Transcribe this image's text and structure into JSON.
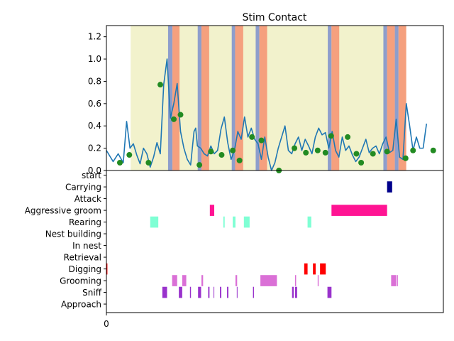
{
  "chart_data": [
    {
      "type": "line",
      "title": "Stim Contact",
      "xlabel": "",
      "ylabel": "",
      "xlim": [
        0,
        1000
      ],
      "ylim": [
        0,
        1.3
      ],
      "yticks": [
        "0.0",
        "0.2",
        "0.4",
        "0.6",
        "0.8",
        "1.0",
        "1.2"
      ],
      "grid": false,
      "line_color": "#1f77b4",
      "marker_color": "#228B22",
      "series": [
        {
          "x": [
            0,
            20,
            35,
            50,
            60,
            70,
            80,
            90,
            100,
            110,
            120,
            130,
            140,
            150,
            160,
            170,
            180,
            190,
            200,
            210,
            220,
            230,
            240,
            250,
            260,
            265,
            270,
            280,
            290,
            300,
            310,
            320,
            330,
            340,
            350,
            360,
            370,
            380,
            390,
            400,
            410,
            420,
            430,
            440,
            450,
            460,
            470,
            480,
            490,
            500,
            510,
            520,
            530,
            540,
            550,
            560,
            570,
            580,
            590,
            600,
            610,
            620,
            630,
            640,
            650,
            660,
            670,
            680,
            690,
            700,
            710,
            720,
            730,
            740,
            750,
            760,
            770,
            780,
            790,
            800,
            810,
            820,
            830,
            840,
            850,
            860,
            870,
            880,
            890,
            900,
            910,
            920,
            930,
            940,
            950
          ],
          "y": [
            0.18,
            0.08,
            0.15,
            0.07,
            0.44,
            0.2,
            0.24,
            0.14,
            0.06,
            0.2,
            0.15,
            0.03,
            0.12,
            0.25,
            0.15,
            0.77,
            1.0,
            0.47,
            0.6,
            0.78,
            0.35,
            0.2,
            0.1,
            0.05,
            0.35,
            0.38,
            0.22,
            0.2,
            0.15,
            0.13,
            0.22,
            0.15,
            0.18,
            0.37,
            0.48,
            0.25,
            0.1,
            0.18,
            0.35,
            0.28,
            0.48,
            0.3,
            0.38,
            0.28,
            0.24,
            0.1,
            0.3,
            0.12,
            0.0,
            0.07,
            0.2,
            0.3,
            0.4,
            0.18,
            0.15,
            0.24,
            0.3,
            0.18,
            0.28,
            0.22,
            0.15,
            0.3,
            0.38,
            0.32,
            0.34,
            0.2,
            0.35,
            0.18,
            0.12,
            0.3,
            0.18,
            0.22,
            0.14,
            0.08,
            0.12,
            0.2,
            0.28,
            0.16,
            0.2,
            0.22,
            0.15,
            0.24,
            0.3,
            0.16,
            0.18,
            0.46,
            0.12,
            0.1,
            0.6,
            0.4,
            0.18,
            0.3,
            0.2,
            0.2,
            0.42
          ]
        }
      ],
      "markers": {
        "x": [
          40,
          68,
          125,
          160,
          200,
          220,
          276,
          310,
          342,
          375,
          395,
          432,
          460,
          512,
          558,
          592,
          627,
          650,
          667,
          716,
          742,
          756,
          791,
          833,
          888,
          910,
          970
        ],
        "y": [
          0.07,
          0.14,
          0.07,
          0.77,
          0.46,
          0.5,
          0.05,
          0.17,
          0.14,
          0.18,
          0.09,
          0.3,
          0.27,
          0.0,
          0.2,
          0.16,
          0.18,
          0.16,
          0.31,
          0.3,
          0.15,
          0.07,
          0.15,
          0.17,
          0.11,
          0.18,
          0.18
        ]
      },
      "bands": [
        {
          "type": "yellow",
          "color": "#f2f2cc",
          "x0": 72,
          "x1": 1000
        },
        {
          "type": "blue",
          "color": "#8e9ecc",
          "x0": 183,
          "x1": 196
        },
        {
          "type": "orange",
          "color": "#f5a07e",
          "x0": 196,
          "x1": 217
        },
        {
          "type": "blue",
          "color": "#8e9ecc",
          "x0": 271,
          "x1": 282
        },
        {
          "type": "orange",
          "color": "#f5a07e",
          "x0": 282,
          "x1": 305
        },
        {
          "type": "blue",
          "color": "#8e9ecc",
          "x0": 372,
          "x1": 382
        },
        {
          "type": "orange",
          "color": "#f5a07e",
          "x0": 382,
          "x1": 406
        },
        {
          "type": "blue",
          "color": "#8e9ecc",
          "x0": 443,
          "x1": 454
        },
        {
          "type": "orange",
          "color": "#f5a07e",
          "x0": 454,
          "x1": 477
        },
        {
          "type": "blue",
          "color": "#8e9ecc",
          "x0": 657,
          "x1": 668
        },
        {
          "type": "orange",
          "color": "#f5a07e",
          "x0": 668,
          "x1": 691
        },
        {
          "type": "blue",
          "color": "#8e9ecc",
          "x0": 822,
          "x1": 833
        },
        {
          "type": "orange",
          "color": "#f5a07e",
          "x0": 833,
          "x1": 856
        },
        {
          "type": "blue",
          "color": "#8e9ecc",
          "x0": 856,
          "x1": 867
        },
        {
          "type": "orange",
          "color": "#f5a07e",
          "x0": 867,
          "x1": 890
        },
        {
          "type": "white",
          "color": "#ffffff",
          "x0": 890,
          "x1": 1000
        }
      ]
    },
    {
      "type": "ethogram",
      "xlim": [
        0,
        1000
      ],
      "xticks": [
        "0"
      ],
      "categories": [
        "start",
        "Carrying",
        "Attack",
        "Aggressive groom",
        "Rearing",
        "Nest building",
        "In nest",
        "Retrieval",
        "Digging",
        "Grooming",
        "Sniff",
        "Approach"
      ],
      "events": [
        {
          "category": "Carrying",
          "color": "#00008b",
          "intervals": [
            [
              833,
              848
            ]
          ]
        },
        {
          "category": "Aggressive groom",
          "color": "#ff1493",
          "intervals": [
            [
              307,
              320
            ],
            [
              668,
              833
            ]
          ]
        },
        {
          "category": "Rearing",
          "color": "#7fffd4",
          "intervals": [
            [
              130,
              154
            ],
            [
              347,
              351
            ],
            [
              375,
              383
            ],
            [
              408,
              425
            ],
            [
              597,
              608
            ]
          ]
        },
        {
          "category": "Digging",
          "color": "#ff0000",
          "intervals": [
            [
              0,
              3
            ],
            [
              587,
              597
            ],
            [
              613,
              621
            ],
            [
              634,
              651
            ]
          ]
        },
        {
          "category": "Grooming",
          "color": "#da70d6",
          "intervals": [
            [
              195,
              210
            ],
            [
              225,
              237
            ],
            [
              282,
              287
            ],
            [
              383,
              388
            ],
            [
              457,
              506
            ],
            [
              560,
              563
            ],
            [
              627,
              630
            ],
            [
              845,
              860
            ],
            [
              862,
              865
            ]
          ]
        },
        {
          "category": "Sniff",
          "color": "#9932cc",
          "intervals": [
            [
              166,
              180
            ],
            [
              215,
              225
            ],
            [
              248,
              251
            ],
            [
              272,
              281
            ],
            [
              302,
              306
            ],
            [
              318,
              320
            ],
            [
              337,
              341
            ],
            [
              358,
              362
            ],
            [
              387,
              389
            ],
            [
              435,
              438
            ],
            [
              551,
              556
            ],
            [
              560,
              566
            ],
            [
              656,
              668
            ]
          ]
        }
      ]
    }
  ]
}
